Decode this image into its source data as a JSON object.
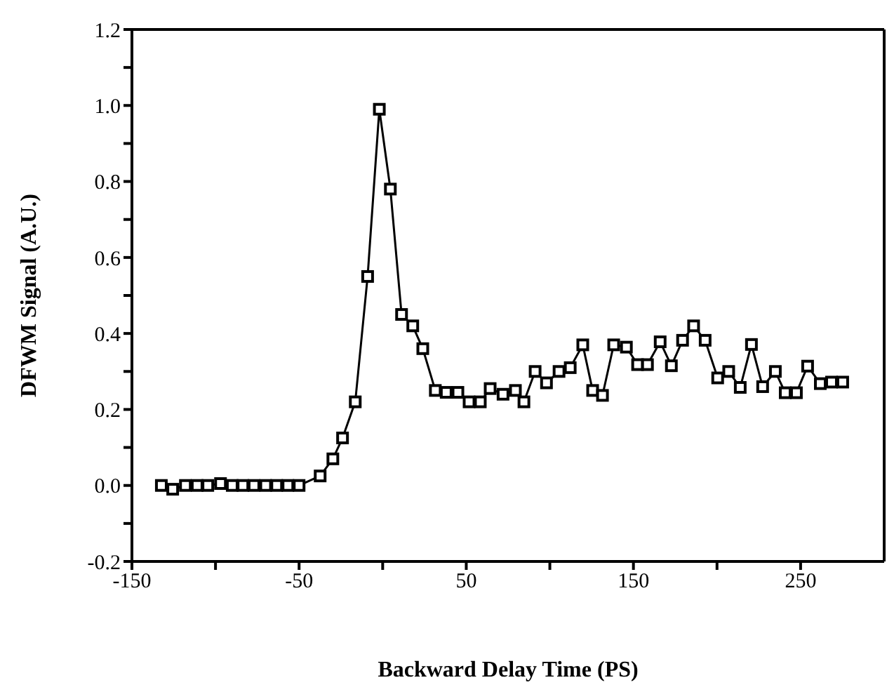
{
  "chart_data": {
    "type": "line",
    "xlabel": "Backward Delay Time (PS)",
    "ylabel": "DFWM Signal (A.U.)",
    "x": [
      -132.4,
      -125.6,
      -118,
      -111,
      -104.6,
      -97,
      -90,
      -83.6,
      -77,
      -70,
      -63.4,
      -56.7,
      -50,
      -37.4,
      -29.8,
      -24,
      -16.4,
      -9,
      -2,
      4.6,
      11.3,
      18,
      24,
      31.5,
      38,
      45,
      51.7,
      58.4,
      64.3,
      72,
      79.4,
      84.5,
      91.2,
      98,
      105.5,
      112.2,
      119.7,
      125.6,
      131.5,
      138.2,
      145.8,
      152.5,
      158.4,
      166,
      172.7,
      179.4,
      186,
      192.9,
      200.4,
      207,
      213.9,
      220.6,
      227.3,
      234.9,
      240.8,
      247.5,
      254.2,
      261.8,
      268.5,
      275.2
    ],
    "series": [
      {
        "color": "#000000",
        "values": [
          0,
          -0.01,
          0,
          0,
          0,
          0.005,
          0,
          0,
          0,
          0,
          0,
          0,
          0,
          0.025,
          0.07,
          0.125,
          0.22,
          0.55,
          0.99,
          0.78,
          0.45,
          0.42,
          0.36,
          0.25,
          0.245,
          0.245,
          0.22,
          0.22,
          0.255,
          0.24,
          0.25,
          0.22,
          0.3,
          0.27,
          0.3,
          0.31,
          0.37,
          0.25,
          0.237,
          0.37,
          0.364,
          0.318,
          0.318,
          0.378,
          0.315,
          0.382,
          0.42,
          0.382,
          0.283,
          0.3,
          0.258,
          0.371,
          0.26,
          0.3,
          0.244,
          0.244,
          0.314,
          0.268,
          0.272,
          0.272
        ]
      }
    ],
    "xlim": [
      -150,
      300
    ],
    "xticks": [
      -150,
      {
        "value": -100,
        "label": null
      },
      -50,
      {
        "value": 0,
        "label": null
      },
      50,
      {
        "value": 100,
        "label": null
      },
      150,
      {
        "value": 200,
        "label": null
      },
      250
    ],
    "ylim": [
      -0.2,
      1.2
    ],
    "yticks": [
      {
        "value": -0.2,
        "label": "-0.2"
      },
      {
        "value": -0.1,
        "label": null
      },
      {
        "value": 0,
        "label": "0.0"
      },
      {
        "value": 0.1,
        "label": null
      },
      {
        "value": 0.2,
        "label": "0.2"
      },
      {
        "value": 0.3,
        "label": null
      },
      {
        "value": 0.4,
        "label": "0.4"
      },
      {
        "value": 0.5,
        "label": null
      },
      {
        "value": 0.6,
        "label": "0.6"
      },
      {
        "value": 0.7,
        "label": null
      },
      {
        "value": 0.8,
        "label": "0.8"
      },
      {
        "value": 0.9,
        "label": null
      },
      {
        "value": 1.0,
        "label": "1.0"
      },
      {
        "value": 1.1,
        "label": null
      },
      {
        "value": 1.2,
        "label": "1.2"
      }
    ],
    "grid": false,
    "legend": false,
    "marker": "square",
    "line_style": "solid"
  }
}
